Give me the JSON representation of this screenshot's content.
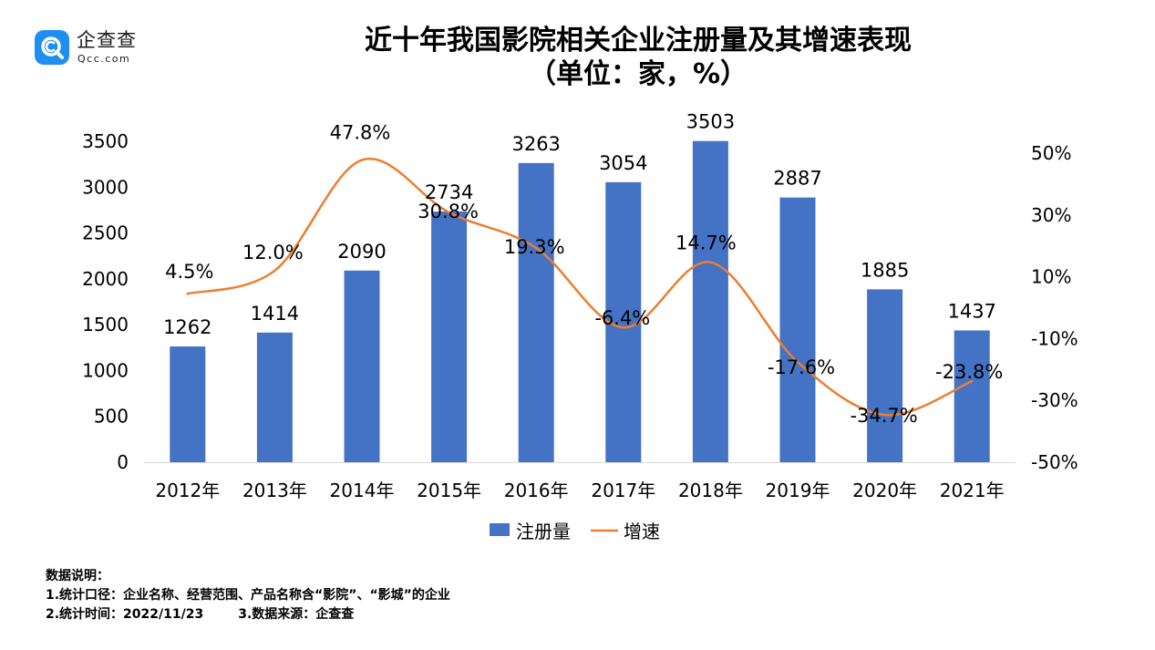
{
  "logo": {
    "name": "企查查",
    "domain": "Qcc.com"
  },
  "title_line1": "近十年我国影院相关企业注册量及其增速表现",
  "title_line2": "（单位：家，%）",
  "chart_data": {
    "type": "bar+line",
    "categories": [
      "2012年",
      "2013年",
      "2014年",
      "2015年",
      "2016年",
      "2017年",
      "2018年",
      "2019年",
      "2020年",
      "2021年"
    ],
    "series": [
      {
        "name": "注册量",
        "type": "bar",
        "axis": "left",
        "color": "#4472c4",
        "values": [
          1262,
          1414,
          2090,
          2734,
          3263,
          3054,
          3503,
          2887,
          1885,
          1437
        ],
        "labels": [
          "1262",
          "1414",
          "2090",
          "2734",
          "3263",
          "3054",
          "3503",
          "2887",
          "1885",
          "1437"
        ]
      },
      {
        "name": "增速",
        "type": "line",
        "smooth": true,
        "axis": "right",
        "color": "#ed7d31",
        "values": [
          4.5,
          12.0,
          47.8,
          30.8,
          19.3,
          -6.4,
          14.7,
          -17.6,
          -34.7,
          -23.8
        ],
        "labels": [
          "4.5%",
          "12.0%",
          "47.8%",
          "30.8%",
          "19.3%",
          "-6.4%",
          "14.7%",
          "-17.6%",
          "-34.7%",
          "-23.8%"
        ]
      }
    ],
    "y_left": {
      "range": [
        0,
        3500
      ],
      "ticks": [
        0,
        500,
        1000,
        1500,
        2000,
        2500,
        3000,
        3500
      ],
      "tick_labels": [
        "0",
        "500",
        "1000",
        "1500",
        "2000",
        "2500",
        "3000",
        "3500"
      ]
    },
    "y_right": {
      "range": [
        -50,
        50
      ],
      "ticks": [
        -50,
        -30,
        -10,
        10,
        30,
        50
      ],
      "tick_labels": [
        "-50%",
        "-30%",
        "-10%",
        "10%",
        "30%",
        "50%"
      ]
    },
    "grid": false,
    "legend": {
      "position": "bottom",
      "items": [
        "注册量",
        "增速"
      ]
    }
  },
  "notes": {
    "heading": "数据说明：",
    "line1": "1.统计口径：企业名称、经营范围、产品名称含“影院”、“影城”的企业",
    "line2a": "2.统计时间：2022/11/23",
    "line2b": "3.数据来源：企查查"
  }
}
